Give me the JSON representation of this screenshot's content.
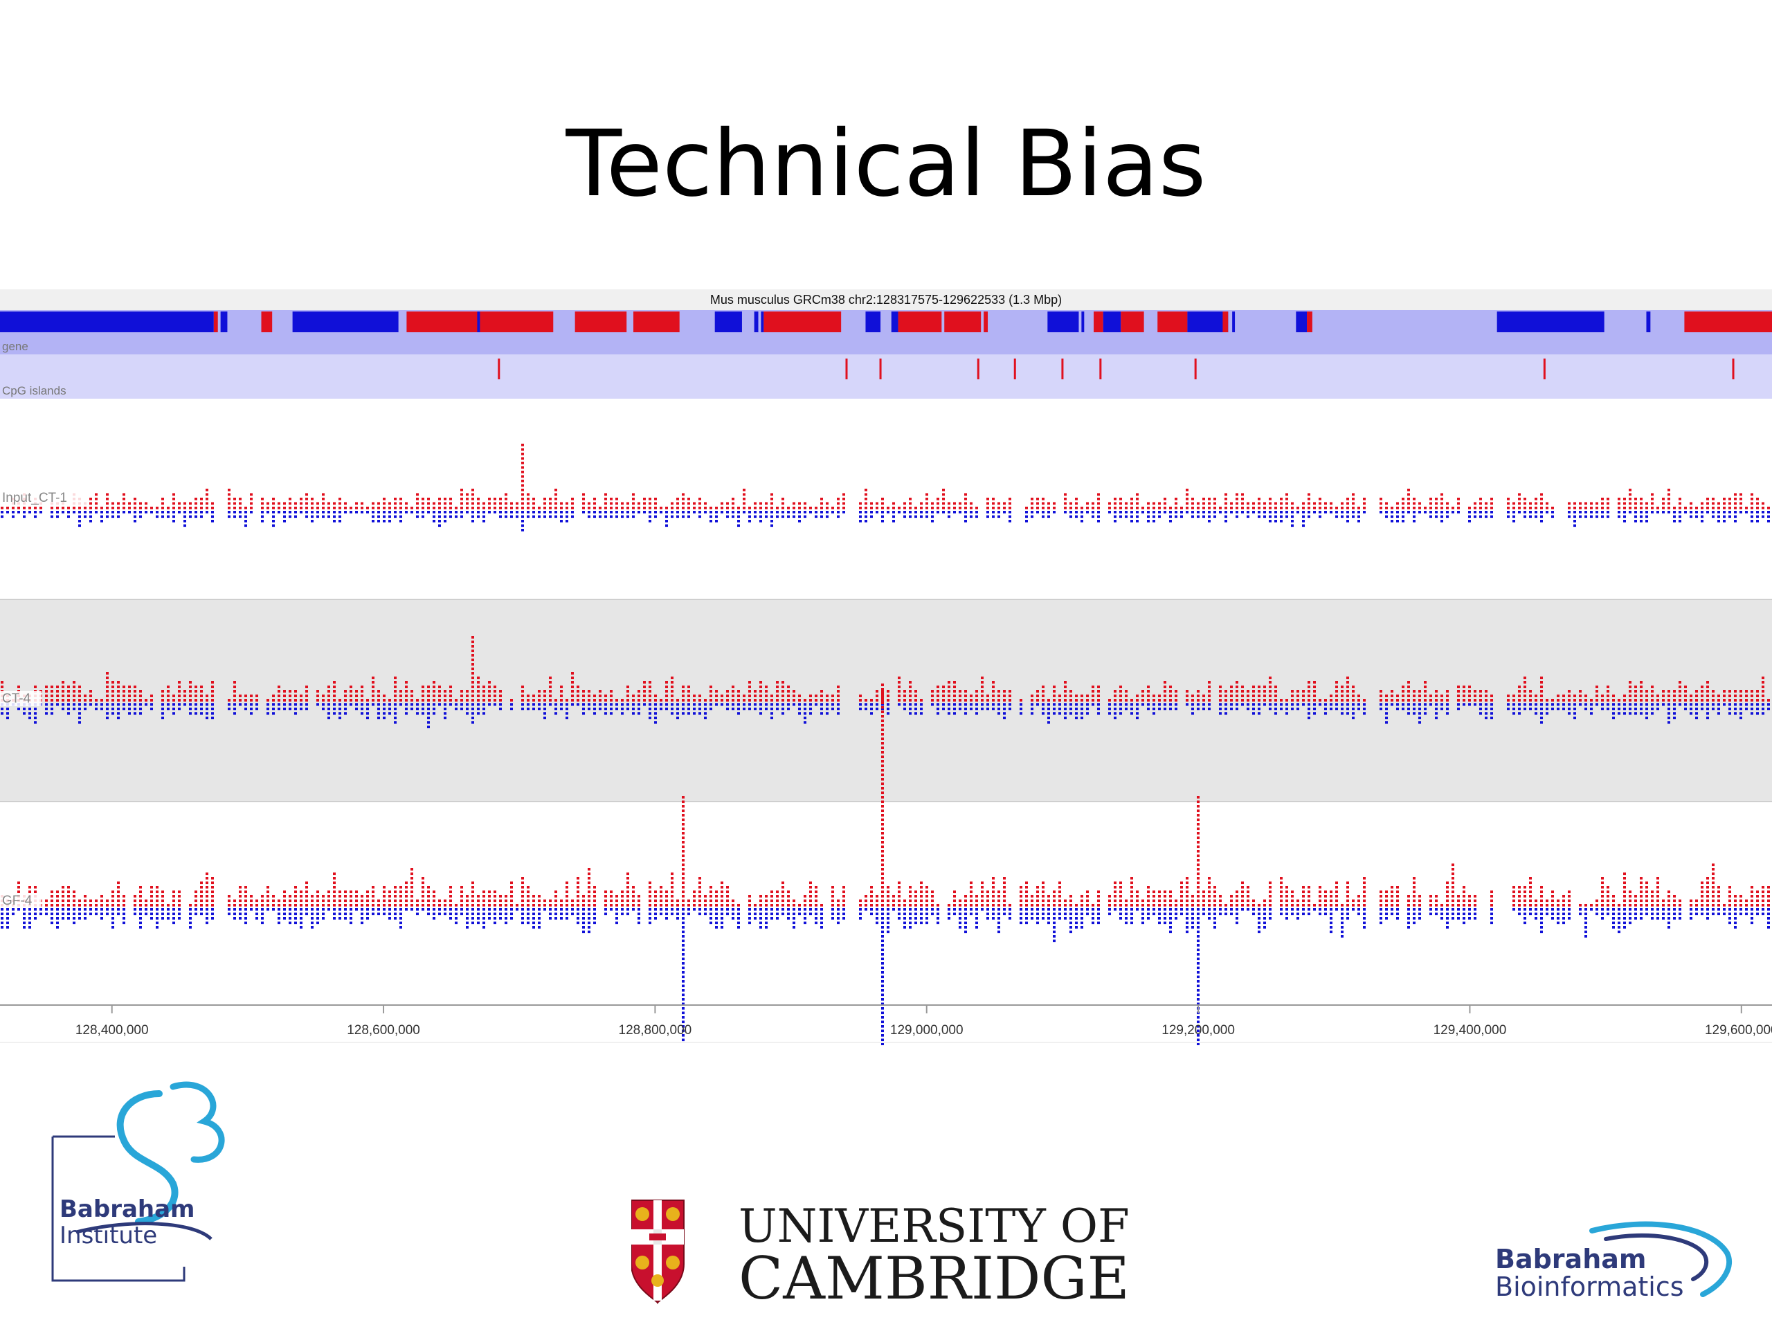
{
  "slide": {
    "title": "Technical Bias"
  },
  "browser": {
    "header": "Mus musculus GRCm38 chr2:128317575-129622533 (1.3 Mbp)",
    "region": {
      "start": 128317575,
      "end": 129622533
    },
    "colors": {
      "forward": "#e0101e",
      "reverse": "#1010d8",
      "track_bg": "#b3b3f5",
      "cpg_bg": "#d6d6fa",
      "alt_bg": "#e6e6e6",
      "header_bg": "#f0f0f0"
    },
    "annotation_tracks": [
      {
        "label": "gene"
      },
      {
        "label": "CpG islands"
      }
    ],
    "genes": [
      {
        "start": 128317575,
        "end": 128475000,
        "strand": "-"
      },
      {
        "start": 128480000,
        "end": 128485000,
        "strand": "-"
      },
      {
        "start": 128475000,
        "end": 128478000,
        "strand": "+"
      },
      {
        "start": 128510000,
        "end": 128518000,
        "strand": "+"
      },
      {
        "start": 128533000,
        "end": 128611000,
        "strand": "-"
      },
      {
        "start": 128617000,
        "end": 128725000,
        "strand": "+"
      },
      {
        "start": 128669000,
        "end": 128671000,
        "strand": "-"
      },
      {
        "start": 128741000,
        "end": 128779000,
        "strand": "+"
      },
      {
        "start": 128784000,
        "end": 128818000,
        "strand": "+"
      },
      {
        "start": 128844000,
        "end": 128864000,
        "strand": "-"
      },
      {
        "start": 128873000,
        "end": 128876000,
        "strand": "-"
      },
      {
        "start": 128878000,
        "end": 128880000,
        "strand": "-"
      },
      {
        "start": 128880000,
        "end": 128937000,
        "strand": "+"
      },
      {
        "start": 128955000,
        "end": 128966000,
        "strand": "-"
      },
      {
        "start": 128974000,
        "end": 128979000,
        "strand": "-"
      },
      {
        "start": 128979000,
        "end": 129011000,
        "strand": "+"
      },
      {
        "start": 129013000,
        "end": 129040000,
        "strand": "+"
      },
      {
        "start": 129042000,
        "end": 129045000,
        "strand": "+"
      },
      {
        "start": 129089000,
        "end": 129112000,
        "strand": "-"
      },
      {
        "start": 129114000,
        "end": 129116000,
        "strand": "-"
      },
      {
        "start": 129123000,
        "end": 129130000,
        "strand": "+"
      },
      {
        "start": 129130000,
        "end": 129143000,
        "strand": "-"
      },
      {
        "start": 129143000,
        "end": 129160000,
        "strand": "+"
      },
      {
        "start": 129170000,
        "end": 129192000,
        "strand": "+"
      },
      {
        "start": 129192000,
        "end": 129222000,
        "strand": "-"
      },
      {
        "start": 129218000,
        "end": 129222000,
        "strand": "+"
      },
      {
        "start": 129225000,
        "end": 129227000,
        "strand": "-"
      },
      {
        "start": 129272000,
        "end": 129280000,
        "strand": "-"
      },
      {
        "start": 129280000,
        "end": 129284000,
        "strand": "+"
      },
      {
        "start": 129420000,
        "end": 129499000,
        "strand": "-"
      },
      {
        "start": 129530000,
        "end": 129533000,
        "strand": "-"
      },
      {
        "start": 129558000,
        "end": 129622533,
        "strand": "+"
      }
    ],
    "cpg_islands": [
      128685000,
      128941000,
      128966000,
      129038000,
      129065000,
      129100000,
      129128000,
      129198000,
      129455000,
      129594000
    ],
    "data_tracks": [
      {
        "label": "Input_CT-1",
        "alt_bg": false,
        "scale": 0.55,
        "seed": 11
      },
      {
        "label": "CT-4",
        "alt_bg": true,
        "scale": 0.75,
        "seed": 29
      },
      {
        "label": "GF-4",
        "alt_bg": false,
        "scale": 1.0,
        "seed": 47
      }
    ],
    "gaps": [
      {
        "start": 128475000,
        "end": 128484000
      },
      {
        "start": 128940000,
        "end": 128948000
      },
      {
        "start": 129128000,
        "end": 129132000
      },
      {
        "start": 129322000,
        "end": 129332000
      },
      {
        "start": 129419000,
        "end": 129425000
      }
    ],
    "spikes": [
      {
        "track": 2,
        "pos": 128968000,
        "up": 10,
        "down": 9
      },
      {
        "track": 2,
        "pos": 129131000,
        "up": 8,
        "down": 7
      },
      {
        "track": 2,
        "pos": 129199000,
        "up": 5,
        "down": 8
      },
      {
        "track": 2,
        "pos": 128820000,
        "up": 5,
        "down": 6
      },
      {
        "track": 0,
        "pos": 128699000,
        "up": 3,
        "down": 1
      },
      {
        "track": 1,
        "pos": 128666000,
        "up": 3,
        "down": 1
      }
    ],
    "axis": {
      "ticks": [
        {
          "pos": 128400000,
          "label": "128,400,000"
        },
        {
          "pos": 128600000,
          "label": "128,600,000"
        },
        {
          "pos": 128800000,
          "label": "128,800,000"
        },
        {
          "pos": 129000000,
          "label": "129,000,000"
        },
        {
          "pos": 129200000,
          "label": "129,200,000"
        },
        {
          "pos": 129400000,
          "label": "129,400,000"
        },
        {
          "pos": 129600000,
          "label": "129,600,000"
        }
      ]
    }
  },
  "logos": {
    "babraham_institute": {
      "line1": "Babraham",
      "line2": "Institute",
      "color": "#2e3a7a",
      "swirl_color": "#29a6d8"
    },
    "cambridge": {
      "line1": "UNIVERSITY OF",
      "line2": "CAMBRIDGE",
      "shield_red": "#c8102e",
      "shield_gold": "#e8b21c"
    },
    "babraham_bioinformatics": {
      "line1": "Babraham",
      "line2": "Bioinformatics",
      "color": "#2e3a7a",
      "swirl_color": "#29a6d8"
    }
  }
}
